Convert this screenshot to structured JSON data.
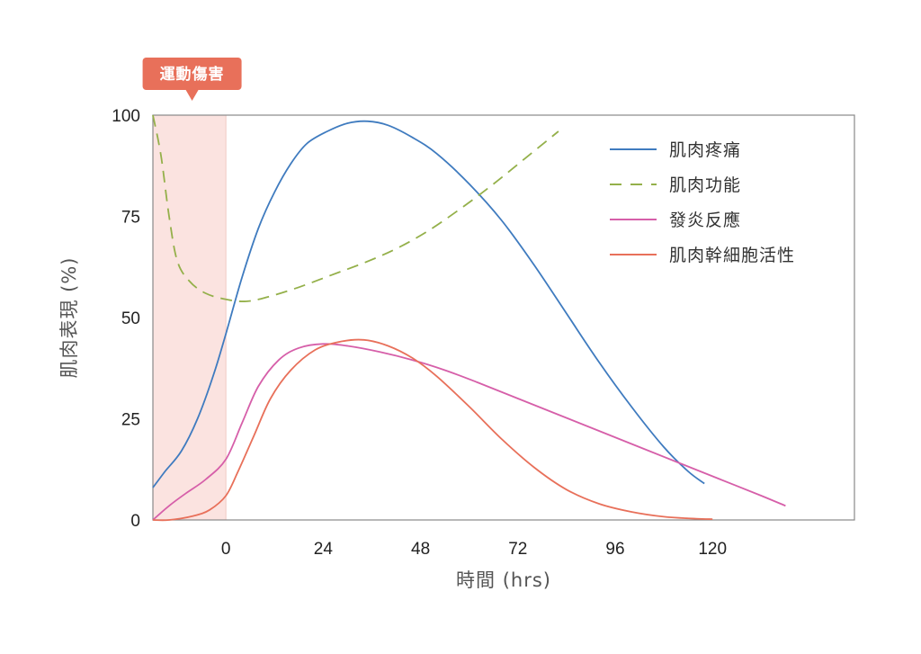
{
  "chart_data": {
    "type": "line",
    "xlabel": "時間 (hrs)",
    "ylabel": "肌肉表現 (%)",
    "xlim": [
      -18,
      155
    ],
    "ylim": [
      0,
      100
    ],
    "x_ticks": [
      0,
      24,
      48,
      72,
      96,
      120
    ],
    "y_ticks": [
      0,
      25,
      50,
      75,
      100
    ],
    "grid": false,
    "legend_position": "top-right",
    "annotation": {
      "label": "運動傷害",
      "x_range": [
        -18,
        0
      ],
      "color": "#e8705a",
      "shade_color": "#fbe3e0"
    },
    "series": [
      {
        "name": "肌肉疼痛",
        "color": "#3f7bbf",
        "dash": "solid",
        "points": [
          [
            -18,
            8
          ],
          [
            -15,
            12
          ],
          [
            -11,
            17
          ],
          [
            -7,
            25
          ],
          [
            -3,
            36
          ],
          [
            0,
            46
          ],
          [
            4,
            60
          ],
          [
            8,
            72
          ],
          [
            12,
            81
          ],
          [
            16,
            88
          ],
          [
            20,
            93
          ],
          [
            25,
            96
          ],
          [
            30,
            98
          ],
          [
            35,
            98.5
          ],
          [
            40,
            97.5
          ],
          [
            46,
            94.5
          ],
          [
            52,
            90.5
          ],
          [
            60,
            83
          ],
          [
            68,
            74
          ],
          [
            76,
            63
          ],
          [
            84,
            51
          ],
          [
            92,
            39
          ],
          [
            100,
            28
          ],
          [
            108,
            18
          ],
          [
            114,
            12
          ],
          [
            118,
            9
          ]
        ]
      },
      {
        "name": "肌肉功能",
        "color": "#94b04a",
        "dash": "dashed",
        "points": [
          [
            -18,
            100
          ],
          [
            -16,
            90
          ],
          [
            -14,
            75
          ],
          [
            -12,
            64
          ],
          [
            -9,
            59
          ],
          [
            -5,
            56
          ],
          [
            0,
            54.5
          ],
          [
            5,
            54
          ],
          [
            10,
            55
          ],
          [
            18,
            57.5
          ],
          [
            26,
            60.5
          ],
          [
            34,
            63.5
          ],
          [
            42,
            67
          ],
          [
            50,
            71.5
          ],
          [
            58,
            77
          ],
          [
            66,
            83
          ],
          [
            74,
            89.5
          ],
          [
            82,
            96
          ]
        ]
      },
      {
        "name": "發炎反應",
        "color": "#d65fa9",
        "dash": "solid",
        "points": [
          [
            -18,
            0
          ],
          [
            -14,
            3.5
          ],
          [
            -10,
            6.5
          ],
          [
            -5,
            10
          ],
          [
            0,
            15
          ],
          [
            4,
            24
          ],
          [
            8,
            33
          ],
          [
            13,
            39.5
          ],
          [
            18,
            42.5
          ],
          [
            24,
            43.5
          ],
          [
            30,
            43
          ],
          [
            38,
            41.5
          ],
          [
            46,
            39.5
          ],
          [
            54,
            37
          ],
          [
            62,
            34
          ],
          [
            72,
            30
          ],
          [
            82,
            26
          ],
          [
            92,
            22
          ],
          [
            102,
            18
          ],
          [
            112,
            14
          ],
          [
            122,
            10
          ],
          [
            132,
            6
          ],
          [
            138,
            3.5
          ]
        ]
      },
      {
        "name": "肌肉幹細胞活性",
        "color": "#e8705a",
        "dash": "solid",
        "points": [
          [
            -18,
            0
          ],
          [
            -14,
            0
          ],
          [
            -8,
            1
          ],
          [
            -4,
            2.5
          ],
          [
            0,
            6
          ],
          [
            3,
            12
          ],
          [
            7,
            21
          ],
          [
            11,
            30
          ],
          [
            16,
            37
          ],
          [
            22,
            42
          ],
          [
            28,
            44
          ],
          [
            34,
            44.5
          ],
          [
            40,
            43
          ],
          [
            46,
            40
          ],
          [
            52,
            35.5
          ],
          [
            60,
            28
          ],
          [
            68,
            20
          ],
          [
            76,
            13
          ],
          [
            84,
            7.5
          ],
          [
            92,
            4
          ],
          [
            100,
            2
          ],
          [
            108,
            0.8
          ],
          [
            116,
            0.3
          ],
          [
            120,
            0.2
          ]
        ]
      }
    ]
  }
}
